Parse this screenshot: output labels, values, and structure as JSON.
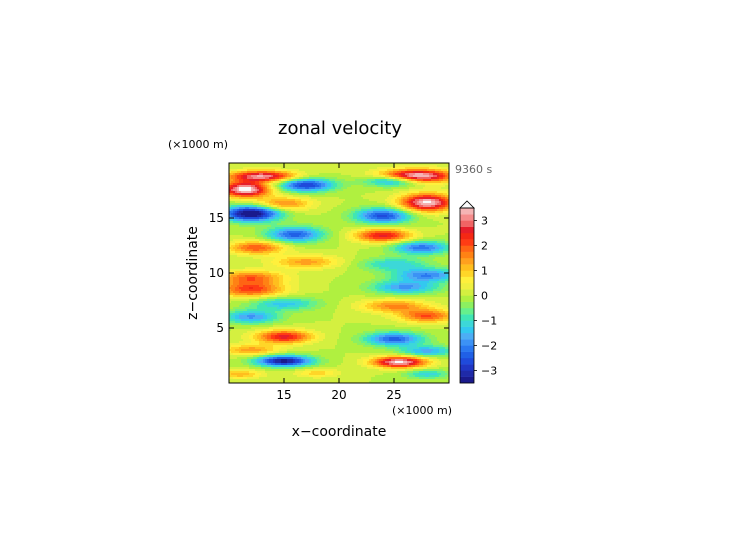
{
  "chart_data": {
    "type": "heatmap",
    "title": "zonal velocity",
    "time_label": "9360 s",
    "xlabel": "x−coordinate",
    "ylabel": "z−coordinate",
    "x_unit": "(×1000 m)",
    "y_unit": "(×1000 m)",
    "xlim": [
      10,
      30
    ],
    "ylim": [
      0,
      20
    ],
    "x_ticks": [
      15,
      20,
      25
    ],
    "y_ticks": [
      5,
      10,
      15
    ],
    "x_tick_labels": [
      "15",
      "20",
      "25"
    ],
    "y_tick_labels": [
      "5",
      "10",
      "15"
    ],
    "colorbar": {
      "levels": [
        -3.5,
        -3.25,
        -3,
        -2.75,
        -2.5,
        -2.25,
        -2,
        -1.75,
        -1.5,
        -1.25,
        -1,
        -0.75,
        -0.5,
        -0.25,
        0,
        0.25,
        0.5,
        0.75,
        1,
        1.25,
        1.5,
        1.75,
        2,
        2.25,
        2.5,
        2.75,
        3,
        3.25,
        3.5
      ],
      "colors": [
        "#1a1a8c",
        "#1f2aa8",
        "#2036c4",
        "#1f4adb",
        "#2060e6",
        "#2a78f0",
        "#3c92f5",
        "#4dadf5",
        "#33c8f0",
        "#3cd8d8",
        "#40e6b4",
        "#66f08c",
        "#8cf060",
        "#b0f040",
        "#d4f040",
        "#f0f040",
        "#fff03c",
        "#ffd628",
        "#ffbe1e",
        "#ffa01e",
        "#ff8214",
        "#ff6414",
        "#ff3c14",
        "#f52814",
        "#e61e2a",
        "#f06464",
        "#f58c8c",
        "#f5b4b4"
      ],
      "overflow_color": "#fafafa",
      "tick_values": [
        3,
        2,
        1,
        0,
        -1,
        -2,
        -3
      ],
      "tick_labels": [
        "3",
        "2",
        "1",
        "0",
        "−1",
        "−2",
        "−3"
      ]
    },
    "field_model": {
      "description_units": "velocity anomaly features (centers in data units, amplitude in field units)",
      "features": [
        {
          "x": 27,
          "z": 18.8,
          "amp": 4.0,
          "sx": 3.2,
          "sz": 0.6
        },
        {
          "x": 13,
          "z": 18.8,
          "amp": 3.2,
          "sx": 3.0,
          "sz": 0.5
        },
        {
          "x": 11.5,
          "z": 17.6,
          "amp": 3.8,
          "sx": 2.2,
          "sz": 0.7
        },
        {
          "x": 28,
          "z": 16.4,
          "amp": 3.6,
          "sx": 2.4,
          "sz": 0.8
        },
        {
          "x": 12,
          "z": 15.4,
          "amp": -3.8,
          "sx": 2.5,
          "sz": 0.7
        },
        {
          "x": 24,
          "z": 15.2,
          "amp": -2.6,
          "sx": 2.5,
          "sz": 0.7
        },
        {
          "x": 17,
          "z": 18.0,
          "amp": -2.8,
          "sx": 2.5,
          "sz": 0.6
        },
        {
          "x": 25,
          "z": 18.4,
          "amp": -2.4,
          "sx": 2.5,
          "sz": 0.5
        },
        {
          "x": 15,
          "z": 16.3,
          "amp": 1.6,
          "sx": 2.5,
          "sz": 0.6
        },
        {
          "x": 16,
          "z": 13.5,
          "amp": -2.4,
          "sx": 2.5,
          "sz": 0.7
        },
        {
          "x": 24,
          "z": 13.4,
          "amp": 2.6,
          "sx": 2.5,
          "sz": 0.6
        },
        {
          "x": 12.5,
          "z": 12.3,
          "amp": 2.0,
          "sx": 2.5,
          "sz": 0.6
        },
        {
          "x": 27.5,
          "z": 12.3,
          "amp": -2.2,
          "sx": 2.5,
          "sz": 0.6
        },
        {
          "x": 17,
          "z": 11.0,
          "amp": 1.4,
          "sx": 3.0,
          "sz": 0.6
        },
        {
          "x": 25,
          "z": 10.8,
          "amp": -1.2,
          "sx": 3.0,
          "sz": 0.6
        },
        {
          "x": 12,
          "z": 9.6,
          "amp": 1.8,
          "sx": 3.0,
          "sz": 0.6
        },
        {
          "x": 28,
          "z": 9.8,
          "amp": -2.0,
          "sx": 3.0,
          "sz": 0.6
        },
        {
          "x": 12,
          "z": 8.5,
          "amp": 2.2,
          "sx": 3.0,
          "sz": 0.7
        },
        {
          "x": 26,
          "z": 8.7,
          "amp": -1.8,
          "sx": 3.0,
          "sz": 0.6
        },
        {
          "x": 15,
          "z": 7.2,
          "amp": -1.4,
          "sx": 3.0,
          "sz": 0.6
        },
        {
          "x": 25,
          "z": 7.0,
          "amp": 1.6,
          "sx": 3.0,
          "sz": 0.6
        },
        {
          "x": 12,
          "z": 6.0,
          "amp": -1.8,
          "sx": 2.5,
          "sz": 0.6
        },
        {
          "x": 28,
          "z": 6.1,
          "amp": 2.0,
          "sx": 2.5,
          "sz": 0.6
        },
        {
          "x": 15,
          "z": 4.2,
          "amp": 2.6,
          "sx": 2.5,
          "sz": 0.6
        },
        {
          "x": 25,
          "z": 4.0,
          "amp": -2.4,
          "sx": 2.6,
          "sz": 0.6
        },
        {
          "x": 12,
          "z": 3.0,
          "amp": 1.4,
          "sx": 2.5,
          "sz": 0.5
        },
        {
          "x": 28,
          "z": 2.9,
          "amp": -1.6,
          "sx": 2.5,
          "sz": 0.5
        },
        {
          "x": 15,
          "z": 2.0,
          "amp": -3.4,
          "sx": 2.5,
          "sz": 0.5
        },
        {
          "x": 25.5,
          "z": 1.9,
          "amp": 3.6,
          "sx": 2.4,
          "sz": 0.5
        },
        {
          "x": 11,
          "z": 0.8,
          "amp": 1.2,
          "sx": 2.0,
          "sz": 0.4
        },
        {
          "x": 18,
          "z": 0.9,
          "amp": 0.9,
          "sx": 2.0,
          "sz": 0.4
        },
        {
          "x": 28,
          "z": 0.8,
          "amp": -1.2,
          "sx": 2.0,
          "sz": 0.4
        }
      ]
    }
  }
}
